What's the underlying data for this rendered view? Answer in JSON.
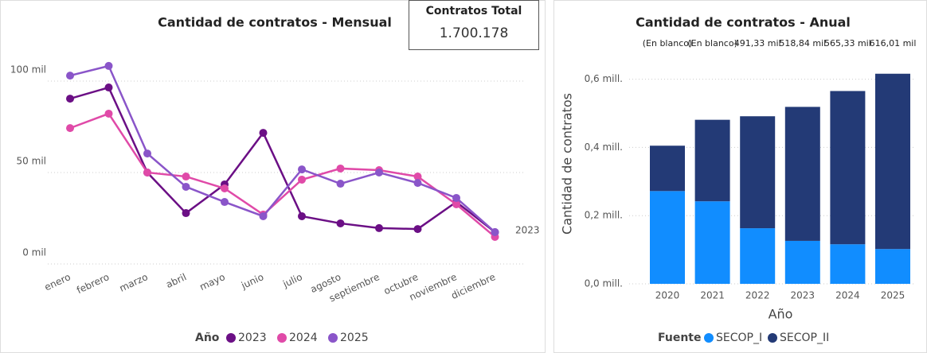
{
  "card": {
    "title": "Contratos Total",
    "value": "1.700.178"
  },
  "chart_data": [
    {
      "type": "line",
      "title": "Cantidad de contratos - Mensual",
      "categories": [
        "enero",
        "febrero",
        "marzo",
        "abril",
        "mayo",
        "junio",
        "julio",
        "agosto",
        "septiembre",
        "octubre",
        "noviembre",
        "diciembre"
      ],
      "series": [
        {
          "name": "2023",
          "color": "#6b0f85",
          "values": [
            90400,
            96500,
            50000,
            27800,
            43500,
            71700,
            26100,
            22200,
            19600,
            19100,
            33900,
            17400
          ]
        },
        {
          "name": "2024",
          "color": "#e04aa8",
          "values": [
            74300,
            82200,
            50000,
            47800,
            41300,
            27000,
            46100,
            52200,
            51300,
            47800,
            32600,
            14800
          ]
        },
        {
          "name": "2025",
          "color": "#8a55c9",
          "values": [
            103000,
            108300,
            60400,
            42200,
            33900,
            26100,
            51700,
            43900,
            50000,
            44300,
            36100,
            17400
          ]
        }
      ],
      "annotation": "2023",
      "legend_title": "Año",
      "ylim": [
        0,
        120000
      ],
      "yticks": [
        {
          "value": 0,
          "label": "0 mil"
        },
        {
          "value": 50000,
          "label": "50 mil"
        },
        {
          "value": 100000,
          "label": "100 mil"
        }
      ],
      "grid": true
    },
    {
      "type": "stacked_bar",
      "title": "Cantidad de contratos - Anual",
      "categories": [
        "2020",
        "2021",
        "2022",
        "2023",
        "2024",
        "2025"
      ],
      "series": [
        {
          "name": "SECOP_I",
          "color": "#118dff",
          "values": [
            272000,
            242000,
            163000,
            126000,
            116000,
            102000
          ]
        },
        {
          "name": "SECOP_II",
          "color": "#233a76",
          "values": [
            133000,
            239000,
            328330,
            392840,
            449330,
            514010
          ]
        }
      ],
      "total_labels": [
        "(En blanco)",
        "(En blanco)",
        "491,33 mil",
        "518,84 mil",
        "565,33 mil",
        "616,01 mil"
      ],
      "x_label": "Año",
      "y_label": "Cantidad de contratos",
      "legend_title": "Fuente",
      "ylim": [
        0,
        690000
      ],
      "yticks": [
        {
          "value": 0,
          "label": "0,0 mill."
        },
        {
          "value": 200000,
          "label": "0,2 mill."
        },
        {
          "value": 400000,
          "label": "0,4 mill."
        },
        {
          "value": 600000,
          "label": "0,6 mill."
        }
      ],
      "grid": true
    }
  ]
}
